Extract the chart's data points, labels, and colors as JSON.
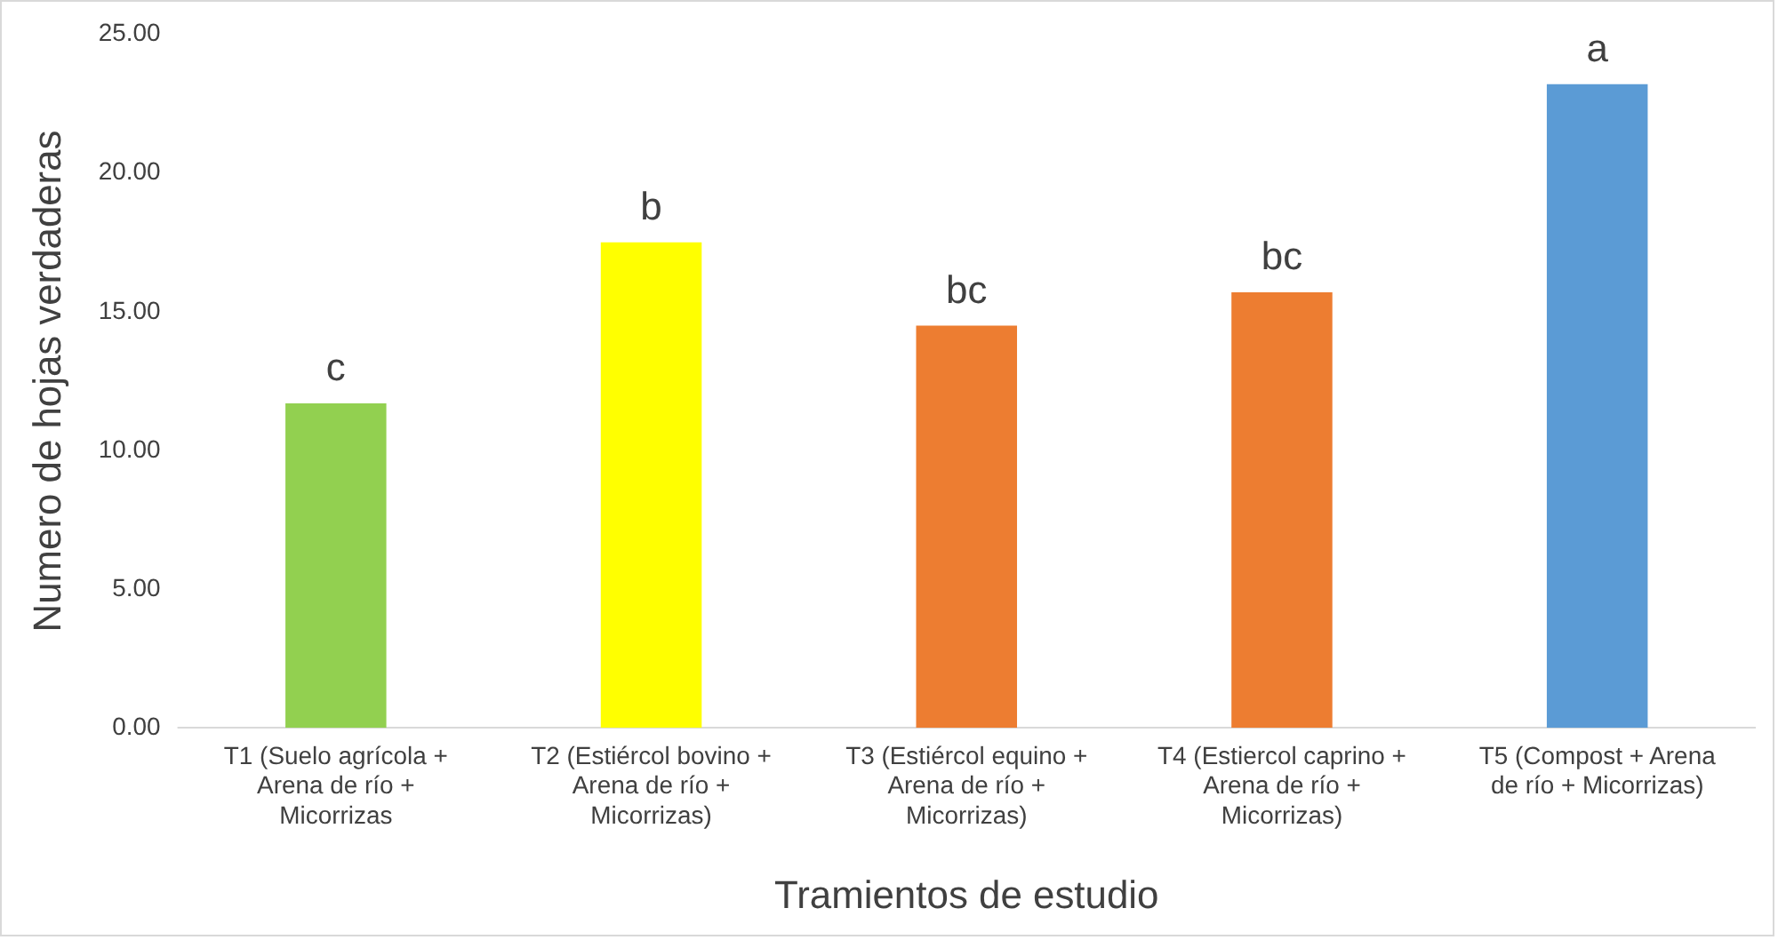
{
  "chart_data": {
    "type": "bar",
    "xlabel": "Tramientos de estudio",
    "ylabel": "Numero de hojas verdaderas",
    "categories": [
      "T1 (Suelo agrícola +\nArena de río +\nMicorrizas",
      "T2 (Estiércol bovino +\nArena de río +\nMicorrizas)",
      "T3 (Estiércol equino +\nArena de río +\nMicorrizas)",
      "T4 (Estiercol caprino +\nArena de río +\nMicorrizas)",
      "T5 (Compost + Arena\nde río + Micorrizas)"
    ],
    "values": [
      11.7,
      17.5,
      14.5,
      15.7,
      23.2
    ],
    "colors": [
      "#92d050",
      "#ffff00",
      "#ed7d31",
      "#ed7d31",
      "#5b9bd5"
    ],
    "ylim": [
      0,
      25
    ],
    "yticks": [
      {
        "value": 0,
        "label": "0.00"
      },
      {
        "value": 5,
        "label": "5.00"
      },
      {
        "value": 10,
        "label": "10.00"
      },
      {
        "value": 15,
        "label": "15.00"
      },
      {
        "value": 20,
        "label": "20.00"
      },
      {
        "value": 25,
        "label": "25.00"
      }
    ],
    "grid": false,
    "annotations": [
      {
        "text": "c",
        "x": "T1 (Suelo agrícola +\nArena de río +\nMicorrizas",
        "y": 11.7
      },
      {
        "text": "b",
        "x": "T2 (Estiércol bovino +\nArena de río +\nMicorrizas)",
        "y": 17.5
      },
      {
        "text": "bc",
        "x": "T3 (Estiércol equino +\nArena de río +\nMicorrizas)",
        "y": 14.5
      },
      {
        "text": "bc",
        "x": "T4 (Estiercol caprino +\nArena de río +\nMicorrizas)",
        "y": 15.7
      },
      {
        "text": "a",
        "x": "T5 (Compost + Arena\nde río + Micorrizas)",
        "y": 23.2
      }
    ]
  }
}
